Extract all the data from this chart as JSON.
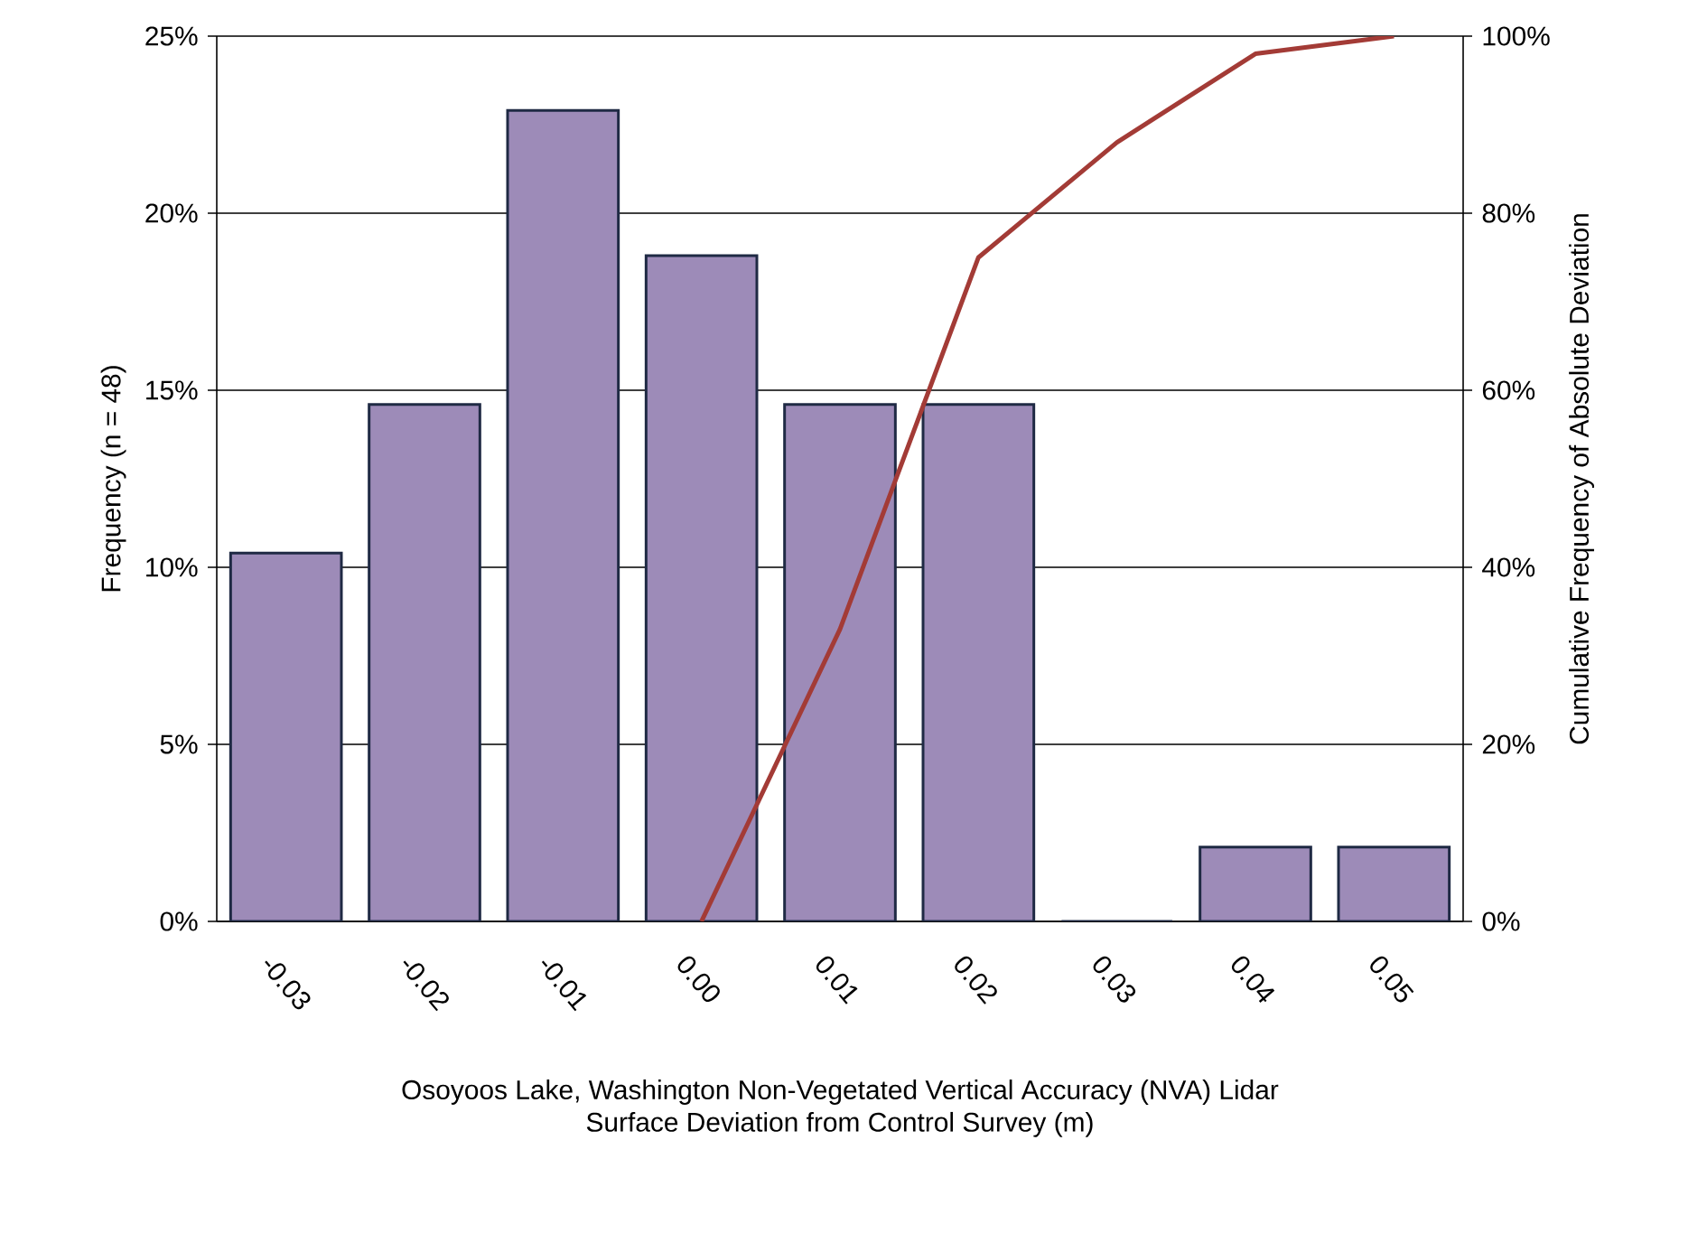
{
  "chart_data": {
    "type": "bar",
    "xlabel": "Osoyoos Lake, Washington Non-Vegetated Vertical Accuracy (NVA) Lidar Surface Deviation from Control Survey (m)",
    "ylabel": "Frequency (n = 48)",
    "y2label": "Cumulative Frequency of Absolute Deviation",
    "categories": [
      "-0.03",
      "-0.02",
      "-0.01",
      "0.00",
      "0.01",
      "0.02",
      "0.03",
      "0.04",
      "0.05"
    ],
    "series": [
      {
        "color": "#9d8bb8",
        "values": [
          10.4,
          14.6,
          22.9,
          18.8,
          14.6,
          14.6,
          0,
          2.1,
          2.1
        ]
      },
      {
        "type": "line",
        "axis": "y2",
        "color": "#a33b36",
        "values": [
          null,
          null,
          null,
          0,
          33,
          75,
          88,
          98,
          100
        ]
      }
    ],
    "ylim": [
      0,
      25
    ],
    "yticks": [
      {
        "value": 0,
        "label": "0%"
      },
      {
        "value": 5,
        "label": "5%"
      },
      {
        "value": 10,
        "label": "10%"
      },
      {
        "value": 15,
        "label": "15%"
      },
      {
        "value": 20,
        "label": "20%"
      },
      {
        "value": 25,
        "label": "25%"
      }
    ],
    "y2lim": [
      0,
      100
    ],
    "y2ticks": [
      {
        "value": 0,
        "label": "0%"
      },
      {
        "value": 20,
        "label": "20%"
      },
      {
        "value": 40,
        "label": "40%"
      },
      {
        "value": 60,
        "label": "60%"
      },
      {
        "value": 80,
        "label": "80%"
      },
      {
        "value": 100,
        "label": "100%"
      }
    ],
    "grid": "y"
  }
}
